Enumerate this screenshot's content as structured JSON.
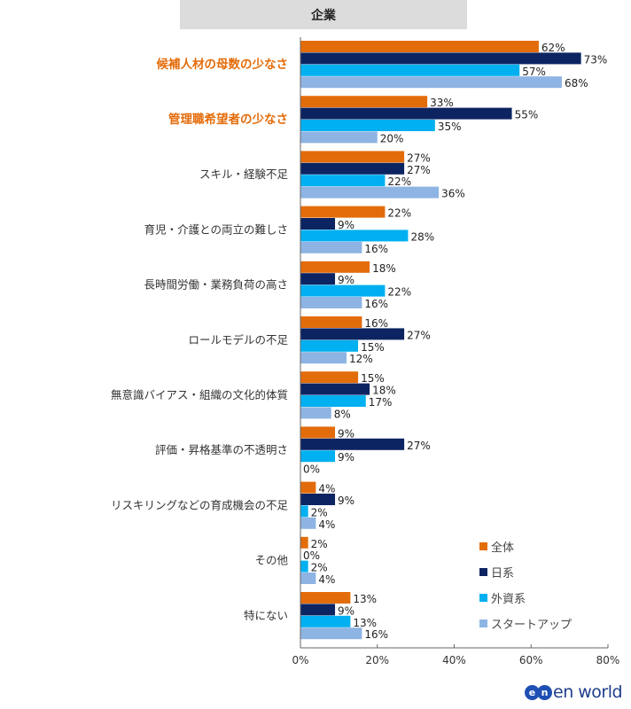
{
  "header": {
    "title": "企業"
  },
  "chart_data": {
    "type": "bar",
    "orientation": "horizontal",
    "categories": [
      "候補人材の母数の少なさ",
      "管理職希望者の少なさ",
      "スキル・経験不足",
      "育児・介護との両立の難しさ",
      "長時間労働・業務負荷の高さ",
      "ロールモデルの不足",
      "無意識バイアス・組織の文化的体質",
      "評価・昇格基準の不透明さ",
      "リスキリングなどの育成機会の不足",
      "その他",
      "特にない"
    ],
    "highlighted_categories": [
      "候補人材の母数の少なさ",
      "管理職希望者の少なさ"
    ],
    "highlight_color": "#e46c0a",
    "series": [
      {
        "name": "全体",
        "color": "#e36c0a",
        "values": [
          62,
          33,
          27,
          22,
          18,
          16,
          15,
          9,
          4,
          2,
          13
        ]
      },
      {
        "name": "日系",
        "color": "#0c2461",
        "values": [
          73,
          55,
          27,
          9,
          9,
          27,
          18,
          27,
          9,
          0,
          9
        ]
      },
      {
        "name": "外資系",
        "color": "#00b0f0",
        "values": [
          57,
          35,
          22,
          28,
          22,
          15,
          17,
          9,
          2,
          2,
          13
        ]
      },
      {
        "name": "スタートアップ",
        "color": "#8eb4e3",
        "values": [
          68,
          20,
          36,
          16,
          16,
          12,
          8,
          0,
          4,
          4,
          16
        ]
      }
    ],
    "xlim": [
      0,
      80
    ],
    "xticks": [
      "0%",
      "20%",
      "40%",
      "60%",
      "80%"
    ],
    "value_suffix": "%",
    "legend_position": "bottom-right",
    "grid": false
  },
  "logo": {
    "text": "enworld",
    "mark": "en"
  }
}
